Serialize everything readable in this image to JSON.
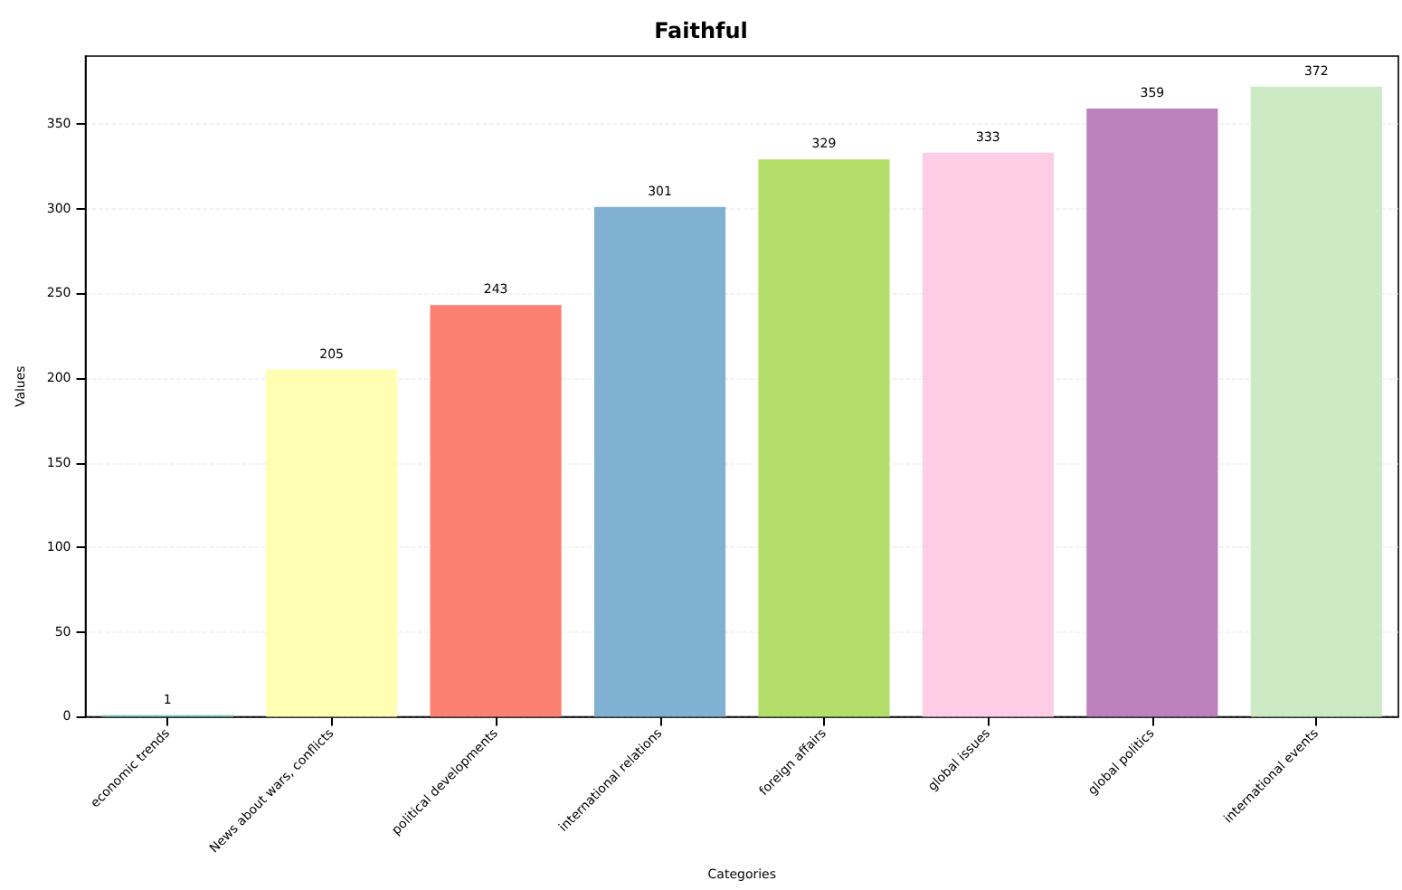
{
  "chart_data": {
    "type": "bar",
    "title": "Faithful",
    "xlabel": "Categories",
    "ylabel": "Values",
    "categories": [
      "economic trends",
      "News about wars, conflicts",
      "political developments",
      "international relations",
      "foreign affairs",
      "global issues",
      "global politics",
      "international events"
    ],
    "values": [
      1,
      205,
      243,
      301,
      329,
      333,
      359,
      372
    ],
    "colors": [
      "#8dd3c7",
      "#ffffb3",
      "#fb8072",
      "#80b1d3",
      "#b3de69",
      "#fccde5",
      "#bc80bd",
      "#ccebc5"
    ],
    "ylim": [
      0,
      390
    ],
    "yticks": [
      0,
      50,
      100,
      150,
      200,
      250,
      300,
      350
    ],
    "grid": "y",
    "data_labels": true
  }
}
